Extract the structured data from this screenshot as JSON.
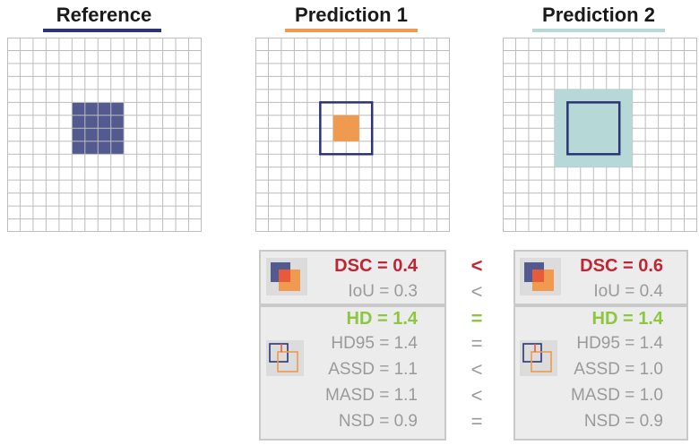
{
  "titles": {
    "reference": "Reference",
    "prediction1": "Prediction 1",
    "prediction2": "Prediction 2"
  },
  "colors": {
    "reference": "#525a8f",
    "prediction1": "#ef9a4e",
    "prediction2": "#b6d9d8",
    "outline": "#2b3576",
    "dsc_red": "#c22433",
    "hd_green": "#8dc63f",
    "gray_text": "#9a9a9a"
  },
  "grid": {
    "cells_per_side": 15,
    "reference_square": {
      "from_cell": 5,
      "to_cell": 9
    },
    "prediction1": {
      "outline_from_cell": 5,
      "outline_to_cell": 9,
      "filled_from_cell": 6,
      "filled_to_cell": 8
    },
    "prediction2": {
      "outline_from_cell": 5,
      "outline_to_cell": 9,
      "filled_from_cell": 4,
      "filled_to_cell": 10
    }
  },
  "pred1": {
    "dsc": "DSC = 0.4",
    "iou": "IoU = 0.3",
    "hd": "HD = 1.4",
    "hd95": "HD95 = 1.4",
    "assd": "ASSD = 1.1",
    "masd": "MASD = 1.1",
    "nsd": "NSD = 0.9"
  },
  "pred2": {
    "dsc": "DSC = 0.6",
    "iou": "IoU = 0.4",
    "hd": "HD = 1.4",
    "hd95": "HD95 = 1.4",
    "assd": "ASSD = 1.0",
    "masd": "MASD = 1.0",
    "nsd": "NSD = 0.9"
  },
  "comparisons": {
    "dsc": "<",
    "iou": "<",
    "hd": "=",
    "hd95": "=",
    "assd": "<",
    "masd": "<",
    "nsd": "="
  }
}
